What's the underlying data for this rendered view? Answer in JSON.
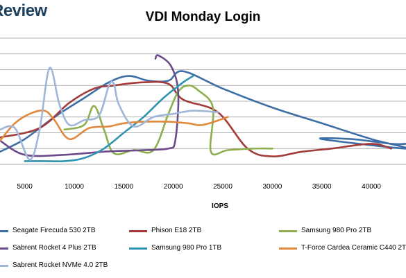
{
  "brand": "Review",
  "chart_data": {
    "type": "line",
    "title": "VDI Monday Login",
    "xlabel": "IOPS",
    "ylabel": "",
    "xlim": [
      2500,
      43500
    ],
    "ylim": [
      0,
      8
    ],
    "x_ticks": [
      5000,
      10000,
      15000,
      20000,
      25000,
      30000,
      35000,
      40000
    ],
    "x_tick_labels": [
      "5000",
      "10000",
      "15000",
      "20000",
      "25000",
      "30000",
      "35000",
      "40000"
    ],
    "grid": true,
    "legend_position": "bottom",
    "series": [
      {
        "name": "Seagate Firecuda 530 2TB",
        "color": "#3e6ea6",
        "x": [
          2500,
          5000,
          8000,
          11000,
          13500,
          15500,
          17500,
          19500,
          21000,
          25000,
          30000,
          35000,
          40000,
          43500,
          35000,
          38000,
          42000,
          43500
        ],
        "y": [
          0.8,
          1.6,
          3.0,
          4.2,
          5.2,
          5.6,
          5.3,
          5.3,
          5.9,
          4.8,
          3.6,
          2.6,
          1.6,
          1.0,
          1.6,
          1.6,
          1.3,
          1.3
        ]
      },
      {
        "name": "Phison E18 2TB",
        "color": "#a23a3a",
        "x": [
          2500,
          6500,
          9500,
          12000,
          14000,
          17000,
          19500,
          21000,
          24500,
          27500,
          30000,
          33000,
          36000,
          40000,
          42000
        ],
        "y": [
          1.7,
          2.3,
          3.9,
          4.8,
          5.0,
          5.2,
          5.1,
          4.1,
          3.3,
          1.0,
          0.5,
          0.8,
          1.0,
          1.3,
          1.0
        ]
      },
      {
        "name": "Samsung 980 Pro 2TB",
        "color": "#8cae4c",
        "x": [
          9000,
          11000,
          12000,
          13000,
          14000,
          16000,
          18000,
          19500,
          20500,
          21500,
          22500,
          24000,
          23800,
          25500,
          28000,
          30000
        ],
        "y": [
          2.2,
          2.5,
          3.7,
          2.2,
          0.7,
          0.9,
          0.9,
          3.2,
          4.6,
          5.0,
          4.7,
          3.6,
          0.8,
          0.9,
          1.0,
          1.0
        ]
      },
      {
        "name": "Sabrent Rocket 4 Plus 2TB",
        "color": "#6b4a8c",
        "x": [
          2500,
          5000,
          9000,
          13000,
          17000,
          19500,
          20200,
          20500,
          19800,
          18500,
          18200
        ],
        "y": [
          1.5,
          0.6,
          0.6,
          0.8,
          0.9,
          1.0,
          1.5,
          4.5,
          6.2,
          6.9,
          6.7
        ]
      },
      {
        "name": "Samsung 980 Pro 1TB",
        "color": "#2f94b2",
        "x": [
          5000,
          7000,
          9000,
          11000,
          13000,
          15000,
          17000,
          19000,
          21000,
          22000
        ],
        "y": [
          0.2,
          0.2,
          0.2,
          0.4,
          1.0,
          2.0,
          3.0,
          4.2,
          5.2,
          5.6
        ]
      },
      {
        "name": "T-Force Cardea Ceramic C440 2TB",
        "color": "#e0883c",
        "x": [
          2500,
          4000,
          5500,
          7000,
          8000,
          9500,
          11500,
          13500,
          15000,
          17000,
          19500,
          21500,
          23000,
          25500
        ],
        "y": [
          1.5,
          2.6,
          3.2,
          3.4,
          2.8,
          1.6,
          2.3,
          2.4,
          2.6,
          2.7,
          2.7,
          2.6,
          2.5,
          3.0
        ]
      },
      {
        "name": "Sabrent Rocket NVMe 4.0 2TB",
        "color": "#9fb6d8",
        "x": [
          2500,
          4000,
          5500,
          6500,
          7500,
          8500,
          9500,
          11000,
          12500,
          13500,
          14000,
          14500,
          16000,
          18000,
          20000,
          22000,
          24500
        ],
        "y": [
          2.2,
          2.3,
          0.3,
          2.2,
          6.1,
          3.8,
          2.5,
          2.8,
          3.1,
          5.0,
          5.1,
          3.8,
          2.4,
          3.0,
          3.2,
          3.4,
          3.3
        ]
      }
    ]
  }
}
